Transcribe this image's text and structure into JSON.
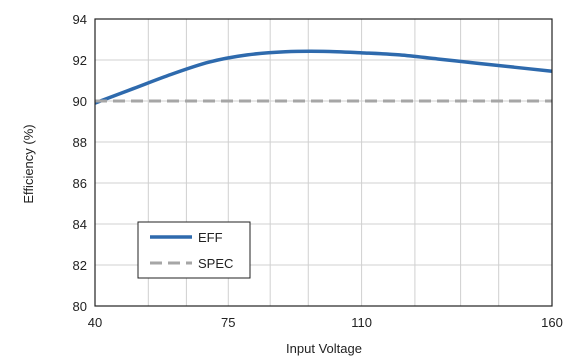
{
  "chart_data": {
    "type": "line",
    "xlabel": "Input Voltage",
    "ylabel": "Efficiency (%)",
    "x_ticks": [
      "40",
      "75",
      "110",
      "160"
    ],
    "x_tick_values": [
      40,
      75,
      110,
      160
    ],
    "x_gridlines": [
      40,
      54,
      64,
      75,
      86,
      96,
      110,
      124,
      136,
      146,
      160
    ],
    "xlim": [
      40,
      160
    ],
    "ylim": [
      80,
      94
    ],
    "y_ticks": [
      "80",
      "82",
      "84",
      "86",
      "88",
      "90",
      "92",
      "94"
    ],
    "grid": true,
    "legend_position": "bottom-left",
    "series": [
      {
        "name": "EFF",
        "color": "#2e6aad",
        "style": "solid",
        "x": [
          40,
          50,
          60,
          70,
          80,
          90,
          100,
          110,
          120,
          130,
          140,
          150,
          160
        ],
        "values": [
          89.9,
          90.6,
          91.3,
          91.9,
          92.25,
          92.4,
          92.42,
          92.35,
          92.25,
          92.05,
          91.85,
          91.65,
          91.45
        ]
      },
      {
        "name": "SPEC",
        "color": "#a6a6a6",
        "style": "dashed",
        "x": [
          40,
          160
        ],
        "values": [
          90,
          90
        ]
      }
    ]
  }
}
